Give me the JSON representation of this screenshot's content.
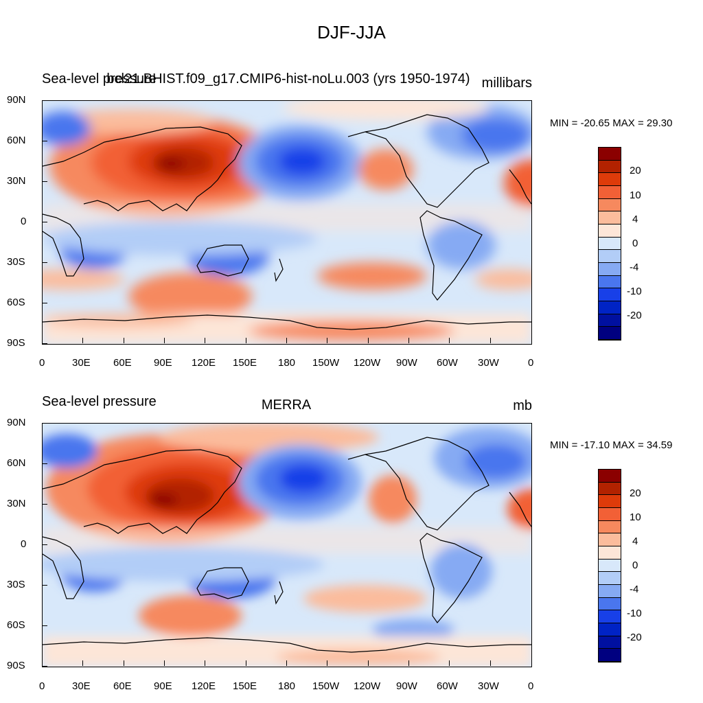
{
  "title": "DJF-JJA",
  "colorbar": {
    "colors": [
      "#8b0000",
      "#b22200",
      "#de3b0a",
      "#f26036",
      "#f6895e",
      "#fbbc9c",
      "#fde6d8",
      "#d8e8fa",
      "#b2cdf7",
      "#86aaf3",
      "#4a76ee",
      "#1840e8",
      "#0023c5",
      "#0010a0",
      "#000080"
    ],
    "labels": [
      "20",
      "10",
      "4",
      "0",
      "-4",
      "-10",
      "-20"
    ]
  },
  "axes": {
    "lat_labels": [
      "90N",
      "60N",
      "30N",
      "0",
      "30S",
      "60S",
      "90S"
    ],
    "lon_labels": [
      "0",
      "30E",
      "60E",
      "90E",
      "120E",
      "150E",
      "180",
      "150W",
      "120W",
      "90W",
      "60W",
      "30W",
      "0"
    ]
  },
  "panels": [
    {
      "left_title": "Sea-level pressure",
      "center_title": "bcl21.BHIST.f09_g17.CMIP6-hist-noLu.003 (yrs 1950-1974)",
      "right_title": "millibars",
      "stats": "MIN = -20.65 MAX =  29.30"
    },
    {
      "left_title": "Sea-level pressure",
      "center_title": "MERRA",
      "right_title": "mb",
      "stats": "MIN = -17.10 MAX =  34.59"
    }
  ]
}
